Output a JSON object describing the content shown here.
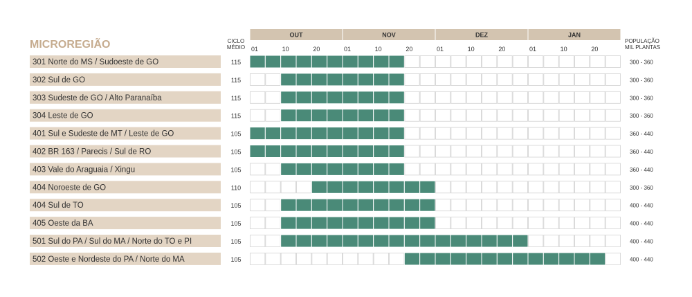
{
  "colors": {
    "header_fill": "#d3c4b0",
    "label_fill": "#e3d5c4",
    "title_color": "#c6ac8f",
    "active_cell": "#4a8a78",
    "empty_cell_border": "#d2d2d2",
    "text": "#333333"
  },
  "header": {
    "title": "MICROREGIÃO",
    "ciclo_line1": "CICLO",
    "ciclo_line2": "MÉDIO",
    "pop_line1": "POPULAÇÃO",
    "pop_line2": "MIL PLANTAS"
  },
  "chart_data": {
    "type": "table",
    "months": [
      "OUT",
      "NOV",
      "DEZ",
      "JAN"
    ],
    "day_labels": [
      "01",
      "10",
      "20"
    ],
    "periods_per_month": 6,
    "rows": [
      {
        "region": "301 Norte do MS / Sudoeste de GO",
        "ciclo": "115",
        "populacao": "300 - 360",
        "start": 0,
        "end": 9
      },
      {
        "region": "302 Sul de GO",
        "ciclo": "115",
        "populacao": "300 - 360",
        "start": 2,
        "end": 9
      },
      {
        "region": "303 Sudeste de GO / Alto Paranaíba",
        "ciclo": "115",
        "populacao": "300 - 360",
        "start": 2,
        "end": 9
      },
      {
        "region": "304 Leste de GO",
        "ciclo": "115",
        "populacao": "300 - 360",
        "start": 2,
        "end": 9
      },
      {
        "region": "401 Sul e Sudeste de MT / Leste de GO",
        "ciclo": "105",
        "populacao": "360 - 440",
        "start": 0,
        "end": 9
      },
      {
        "region": "402 BR 163 / Parecis / Sul de RO",
        "ciclo": "105",
        "populacao": "360 - 440",
        "start": 0,
        "end": 9
      },
      {
        "region": "403 Vale do Araguaia / Xingu",
        "ciclo": "105",
        "populacao": "360 - 440",
        "start": 2,
        "end": 9
      },
      {
        "region": "404 Noroeste de GO",
        "ciclo": "110",
        "populacao": "300 - 360",
        "start": 4,
        "end": 11
      },
      {
        "region": "404 Sul de TO",
        "ciclo": "105",
        "populacao": "400 - 440",
        "start": 2,
        "end": 11
      },
      {
        "region": "405 Oeste da BA",
        "ciclo": "105",
        "populacao": "400 - 440",
        "start": 2,
        "end": 11
      },
      {
        "region": "501 Sul do PA / Sul do MA / Norte do TO e PI",
        "ciclo": "105",
        "populacao": "400 - 440",
        "start": 2,
        "end": 17
      },
      {
        "region": "502 Oeste e Nordeste do PA / Norte do MA",
        "ciclo": "105",
        "populacao": "400 - 440",
        "start": 10,
        "end": 22
      }
    ]
  }
}
